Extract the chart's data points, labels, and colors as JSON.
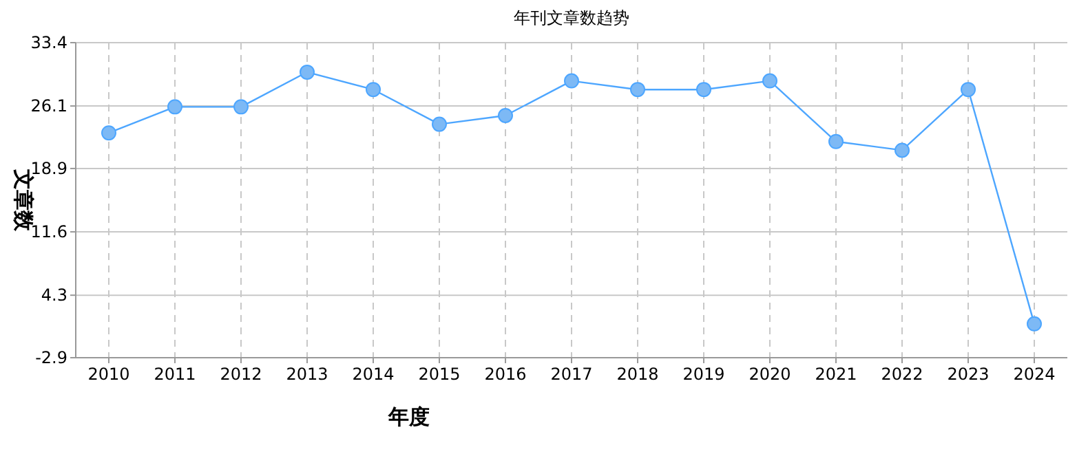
{
  "chart_data": {
    "type": "line",
    "title": "年刊文章数趋势",
    "xlabel": "年度",
    "ylabel": "文章数",
    "categories": [
      "2010",
      "2011",
      "2012",
      "2013",
      "2014",
      "2015",
      "2016",
      "2017",
      "2018",
      "2019",
      "2020",
      "2021",
      "2022",
      "2023",
      "2024"
    ],
    "series": [
      {
        "color": "#4da6ff",
        "values": [
          23,
          26,
          26,
          30,
          28,
          24,
          25,
          29,
          28,
          28,
          29,
          22,
          21,
          28,
          1
        ]
      }
    ],
    "ylim": [
      -2.9,
      33.4
    ],
    "yticks": [
      -2.9,
      4.3,
      11.6,
      18.9,
      26.1,
      33.4
    ],
    "grid": true,
    "marker": "circle",
    "line_style": "solid"
  }
}
